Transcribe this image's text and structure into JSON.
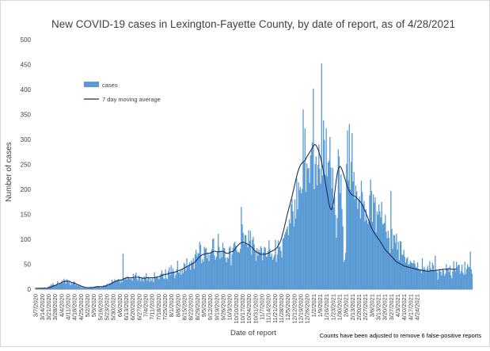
{
  "chart_data": {
    "type": "bar",
    "title": "New COVID-19 cases in Lexington-Fayette County, by date of report, as of 4/28/2021",
    "xlabel": "Date of report",
    "ylabel": "Number of cases",
    "note": "Counts have been adjusted to remove 6 false-positive reports",
    "ylim": [
      0,
      500
    ],
    "yticks": [
      0,
      50,
      100,
      150,
      200,
      250,
      300,
      350,
      400,
      450,
      500
    ],
    "grid": false,
    "legend_position": "upper-left",
    "x_start": "3/7/2020",
    "x_tick_labels": [
      "3/7/2020",
      "3/14/2020",
      "3/21/2020",
      "3/28/2020",
      "4/4/2020",
      "4/11/2020",
      "4/18/2020",
      "4/25/2020",
      "5/2/2020",
      "5/9/2020",
      "5/16/2020",
      "5/23/2020",
      "5/30/2020",
      "6/6/2020",
      "6/13/2020",
      "6/20/2020",
      "6/27/2020",
      "7/4/2020",
      "7/11/2020",
      "7/18/2020",
      "7/25/2020",
      "8/1/2020",
      "8/8/2020",
      "8/15/2020",
      "8/22/2020",
      "8/29/2020",
      "9/5/2020",
      "9/12/2020",
      "9/19/2020",
      "9/26/2020",
      "10/3/2020",
      "10/10/2020",
      "10/17/2020",
      "10/24/2020",
      "10/31/2020",
      "11/7/2020",
      "11/14/2020",
      "11/21/2020",
      "11/28/2020",
      "12/5/2020",
      "12/12/2020",
      "12/19/2020",
      "12/26/2020",
      "1/2/2021",
      "1/9/2021",
      "1/16/2021",
      "1/23/2021",
      "1/30/2021",
      "2/6/2021",
      "2/13/2021",
      "2/20/2021",
      "2/27/2021",
      "3/6/2021",
      "3/13/2021",
      "3/20/2021",
      "3/27/2021",
      "4/3/2021",
      "4/10/2021",
      "4/17/2021",
      "4/24/2021"
    ],
    "series": [
      {
        "name": "cases",
        "kind": "bar",
        "color": "#5b9bd5",
        "values": [
          1,
          1,
          2,
          1,
          2,
          1,
          3,
          3,
          2,
          3,
          4,
          1,
          2,
          2,
          5,
          6,
          7,
          10,
          8,
          12,
          9,
          6,
          8,
          10,
          16,
          9,
          12,
          13,
          14,
          18,
          13,
          21,
          18,
          11,
          20,
          18,
          14,
          16,
          8,
          14,
          10,
          14,
          16,
          11,
          8,
          11,
          6,
          8,
          6,
          6,
          3,
          6,
          3,
          3,
          4,
          2,
          2,
          4,
          3,
          3,
          5,
          4,
          3,
          4,
          5,
          4,
          6,
          5,
          6,
          6,
          4,
          3,
          5,
          4,
          8,
          7,
          8,
          9,
          11,
          6,
          12,
          12,
          13,
          19,
          16,
          15,
          20,
          16,
          18,
          18,
          21,
          17,
          13,
          20,
          14,
          71,
          22,
          20,
          24,
          19,
          26,
          22,
          22,
          20,
          24,
          17,
          31,
          22,
          29,
          33,
          21,
          17,
          27,
          25,
          16,
          22,
          22,
          16,
          26,
          21,
          32,
          17,
          25,
          23,
          15,
          22,
          17,
          24,
          14,
          34,
          24,
          25,
          26,
          22,
          20,
          26,
          31,
          38,
          31,
          22,
          20,
          40,
          22,
          20,
          37,
          44,
          28,
          48,
          33,
          42,
          35,
          22,
          29,
          40,
          57,
          34,
          32,
          38,
          29,
          40,
          32,
          53,
          50,
          37,
          62,
          44,
          48,
          54,
          39,
          57,
          53,
          62,
          41,
          70,
          79,
          66,
          73,
          71,
          95,
          89,
          52,
          60,
          55,
          85,
          81,
          83,
          62,
          71,
          56,
          69,
          73,
          80,
          100,
          102,
          68,
          59,
          65,
          74,
          111,
          85,
          61,
          77,
          64,
          93,
          83,
          82,
          63,
          54,
          64,
          62,
          83,
          86,
          48,
          70,
          83,
          92,
          95,
          87,
          79,
          74,
          75,
          73,
          81,
          165,
          130,
          113,
          91,
          109,
          108,
          90,
          84,
          118,
          97,
          117,
          69,
          99,
          105,
          90,
          76,
          57,
          82,
          67,
          79,
          74,
          86,
          83,
          58,
          74,
          85,
          83,
          66,
          65,
          76,
          98,
          80,
          65,
          71,
          59,
          64,
          69,
          99,
          55,
          70,
          98,
          84,
          86,
          77,
          64,
          101,
          103,
          110,
          115,
          121,
          126,
          108,
          140,
          132,
          170,
          180,
          156,
          126,
          180,
          142,
          222,
          160,
          214,
          199,
          205,
          192,
          201,
          360,
          254,
          322,
          195,
          252,
          242,
          243,
          213,
          268,
          278,
          294,
          402,
          200,
          251,
          266,
          208,
          249,
          290,
          241,
          212,
          452,
          228,
          338,
          299,
          229,
          322,
          226,
          254,
          258,
          305,
          244,
          202,
          243,
          164,
          186,
          149,
          103,
          143,
          280,
          266,
          193,
          230,
          161,
          126,
          55,
          59,
          73,
          251,
          318,
          218,
          331,
          200,
          255,
          313,
          216,
          235,
          181,
          208,
          196,
          161,
          179,
          186,
          142,
          217,
          195,
          171,
          177,
          136,
          160,
          139,
          131,
          135,
          188,
          220,
          197,
          135,
          190,
          174,
          184,
          114,
          156,
          149,
          170,
          156,
          144,
          175,
          130,
          131,
          133,
          149,
          115,
          102,
          117,
          103,
          73,
          197,
          121,
          81,
          109,
          108,
          93,
          111,
          79,
          95,
          58,
          97,
          95,
          69,
          69,
          79,
          65,
          53,
          61,
          64,
          49,
          51,
          57,
          54,
          52,
          52,
          58,
          51,
          45,
          43,
          54,
          41,
          38,
          40,
          32,
          62,
          40,
          45,
          40,
          34,
          41,
          47,
          35,
          56,
          42,
          38,
          53,
          48,
          37,
          67,
          39,
          34,
          19,
          37,
          38,
          35,
          28,
          39,
          38,
          27,
          31,
          50,
          39,
          42,
          34,
          47,
          28,
          22,
          36,
          56,
          40,
          36,
          55,
          45,
          49,
          49,
          31,
          37,
          49,
          33,
          29,
          55,
          30,
          41,
          50,
          45,
          44,
          75,
          40,
          31
        ]
      },
      {
        "name": "7 day moving average",
        "kind": "line",
        "color": "#1f2d5a",
        "values": [
          2,
          2,
          2,
          2,
          2,
          2,
          2,
          2,
          2,
          2,
          2,
          2,
          2,
          2,
          3,
          3,
          3,
          4,
          5,
          6,
          7,
          7,
          8,
          9,
          10,
          11,
          11,
          12,
          13,
          14,
          15,
          15,
          16,
          16,
          16,
          16,
          16,
          16,
          15,
          14,
          13,
          13,
          12,
          12,
          11,
          10,
          9,
          8,
          8,
          7,
          6,
          5,
          5,
          4,
          4,
          3,
          3,
          3,
          3,
          3,
          3,
          3,
          3,
          4,
          4,
          4,
          5,
          5,
          5,
          5,
          5,
          5,
          5,
          5,
          6,
          6,
          6,
          7,
          8,
          8,
          9,
          10,
          11,
          12,
          13,
          14,
          15,
          16,
          17,
          17,
          18,
          18,
          18,
          18,
          19,
          20,
          21,
          22,
          22,
          23,
          23,
          23,
          23,
          23,
          23,
          23,
          23,
          24,
          24,
          24,
          24,
          24,
          24,
          23,
          23,
          23,
          22,
          22,
          22,
          22,
          23,
          23,
          23,
          23,
          23,
          23,
          23,
          23,
          23,
          23,
          24,
          24,
          24,
          25,
          25,
          26,
          27,
          28,
          28,
          29,
          29,
          30,
          30,
          30,
          31,
          31,
          32,
          33,
          33,
          34,
          34,
          34,
          35,
          35,
          36,
          37,
          38,
          38,
          39,
          40,
          41,
          42,
          43,
          44,
          45,
          46,
          47,
          48,
          49,
          50,
          51,
          52,
          53,
          55,
          57,
          59,
          61,
          63,
          65,
          67,
          68,
          69,
          70,
          70,
          71,
          71,
          72,
          72,
          72,
          72,
          73,
          74,
          75,
          76,
          76,
          76,
          75,
          75,
          75,
          75,
          75,
          76,
          76,
          76,
          75,
          74,
          73,
          72,
          72,
          72,
          73,
          74,
          75,
          75,
          76,
          77,
          79,
          82,
          85,
          87,
          89,
          91,
          92,
          93,
          94,
          94,
          94,
          93,
          92,
          91,
          90,
          89,
          88,
          86,
          85,
          83,
          81,
          79,
          77,
          75,
          74,
          73,
          72,
          71,
          70,
          70,
          70,
          70,
          70,
          70,
          71,
          71,
          72,
          73,
          74,
          75,
          76,
          77,
          78,
          79,
          80,
          82,
          84,
          87,
          90,
          94,
          99,
          105,
          112,
          119,
          127,
          135,
          143,
          151,
          158,
          165,
          172,
          179,
          186,
          194,
          202,
          210,
          218,
          226,
          233,
          239,
          244,
          248,
          251,
          253,
          255,
          256,
          258,
          261,
          265,
          268,
          271,
          274,
          277,
          280,
          283,
          286,
          289,
          290,
          288,
          285,
          281,
          276,
          270,
          263,
          255,
          246,
          236,
          226,
          215,
          204,
          193,
          182,
          171,
          164,
          160,
          160,
          165,
          175,
          190,
          205,
          220,
          232,
          240,
          245,
          246,
          244,
          240,
          235,
          229,
          223,
          217,
          211,
          205,
          200,
          196,
          193,
          191,
          189,
          188,
          187,
          186,
          185,
          183,
          181,
          179,
          177,
          175,
          172,
          169,
          165,
          161,
          157,
          153,
          148,
          143,
          138,
          133,
          128,
          123,
          119,
          116,
          113,
          110,
          107,
          105,
          102,
          100,
          97,
          94,
          91,
          88,
          85,
          82,
          79,
          77,
          75,
          73,
          71,
          69,
          67,
          65,
          63,
          61,
          59,
          57,
          55,
          54,
          53,
          52,
          51,
          50,
          49,
          48,
          47,
          46,
          46,
          45,
          45,
          44,
          44,
          43,
          43,
          42,
          42,
          41,
          41,
          40,
          40,
          39,
          39,
          39,
          38,
          38,
          38,
          37,
          37,
          37,
          36,
          36,
          36,
          36,
          36,
          37,
          37,
          37,
          37,
          37,
          38,
          38,
          38,
          38,
          39,
          39,
          39,
          39,
          40,
          40,
          40,
          40,
          40,
          40,
          41,
          41,
          41,
          40,
          40,
          40,
          40,
          40,
          40,
          41
        ]
      }
    ]
  }
}
